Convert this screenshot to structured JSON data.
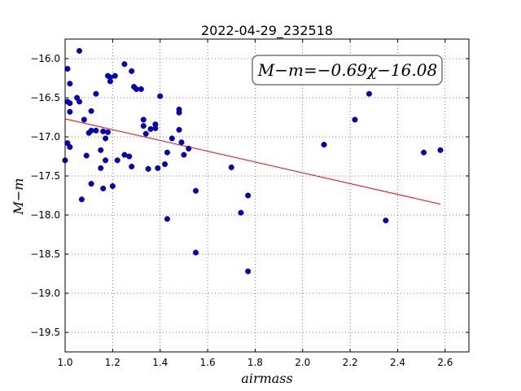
{
  "chart_data": {
    "type": "scatter",
    "title": "2022-04-29_232518",
    "xlabel": "airmass",
    "ylabel": "M−m",
    "xlim": [
      1.0,
      2.7
    ],
    "ylim": [
      -19.75,
      -15.75
    ],
    "ylim_direction": "inverted",
    "grid": true,
    "xticks": [
      "1.0",
      "1.2",
      "1.4",
      "1.6",
      "1.8",
      "2.0",
      "2.2",
      "2.4",
      "2.6"
    ],
    "yticks": [
      "−16.0",
      "−16.5",
      "−17.0",
      "−17.5",
      "−18.0",
      "−18.5",
      "−19.0",
      "−19.5"
    ],
    "annotation": "M−m=−0.69χ−16.08",
    "fit": {
      "slope": -0.69,
      "intercept": -16.08,
      "x_range": [
        1.0,
        2.58
      ],
      "color": "#ff0000"
    },
    "marker_color": "#0000cc",
    "points": [
      {
        "x": 1.0,
        "y": -17.3
      },
      {
        "x": 1.01,
        "y": -16.13
      },
      {
        "x": 1.01,
        "y": -16.55
      },
      {
        "x": 1.01,
        "y": -17.08
      },
      {
        "x": 1.02,
        "y": -17.13
      },
      {
        "x": 1.02,
        "y": -16.57
      },
      {
        "x": 1.02,
        "y": -16.32
      },
      {
        "x": 1.02,
        "y": -16.68
      },
      {
        "x": 1.05,
        "y": -16.5
      },
      {
        "x": 1.06,
        "y": -16.55
      },
      {
        "x": 1.06,
        "y": -15.9
      },
      {
        "x": 1.07,
        "y": -17.8
      },
      {
        "x": 1.08,
        "y": -16.78
      },
      {
        "x": 1.09,
        "y": -17.24
      },
      {
        "x": 1.1,
        "y": -16.95
      },
      {
        "x": 1.11,
        "y": -16.67
      },
      {
        "x": 1.11,
        "y": -16.92
      },
      {
        "x": 1.11,
        "y": -17.6
      },
      {
        "x": 1.13,
        "y": -16.92
      },
      {
        "x": 1.13,
        "y": -16.45
      },
      {
        "x": 1.15,
        "y": -17.4
      },
      {
        "x": 1.15,
        "y": -17.17
      },
      {
        "x": 1.16,
        "y": -17.66
      },
      {
        "x": 1.16,
        "y": -16.93
      },
      {
        "x": 1.17,
        "y": -17.3
      },
      {
        "x": 1.17,
        "y": -17.02
      },
      {
        "x": 1.18,
        "y": -16.94
      },
      {
        "x": 1.18,
        "y": -16.22
      },
      {
        "x": 1.19,
        "y": -16.29
      },
      {
        "x": 1.19,
        "y": -16.24
      },
      {
        "x": 1.2,
        "y": -17.63
      },
      {
        "x": 1.21,
        "y": -16.22
      },
      {
        "x": 1.22,
        "y": -17.3
      },
      {
        "x": 1.25,
        "y": -17.23
      },
      {
        "x": 1.25,
        "y": -16.07
      },
      {
        "x": 1.27,
        "y": -17.25
      },
      {
        "x": 1.28,
        "y": -17.38
      },
      {
        "x": 1.28,
        "y": -16.16
      },
      {
        "x": 1.29,
        "y": -16.36
      },
      {
        "x": 1.3,
        "y": -16.39
      },
      {
        "x": 1.32,
        "y": -16.39
      },
      {
        "x": 1.33,
        "y": -16.78
      },
      {
        "x": 1.33,
        "y": -16.86
      },
      {
        "x": 1.34,
        "y": -16.96
      },
      {
        "x": 1.35,
        "y": -17.41
      },
      {
        "x": 1.36,
        "y": -16.9
      },
      {
        "x": 1.38,
        "y": -16.89
      },
      {
        "x": 1.38,
        "y": -16.84
      },
      {
        "x": 1.39,
        "y": -17.4
      },
      {
        "x": 1.4,
        "y": -16.48
      },
      {
        "x": 1.42,
        "y": -17.35
      },
      {
        "x": 1.43,
        "y": -17.2
      },
      {
        "x": 1.43,
        "y": -18.05
      },
      {
        "x": 1.45,
        "y": -17.02
      },
      {
        "x": 1.48,
        "y": -16.65
      },
      {
        "x": 1.48,
        "y": -16.69
      },
      {
        "x": 1.48,
        "y": -16.91
      },
      {
        "x": 1.49,
        "y": -17.07
      },
      {
        "x": 1.5,
        "y": -17.23
      },
      {
        "x": 1.52,
        "y": -17.15
      },
      {
        "x": 1.55,
        "y": -18.48
      },
      {
        "x": 1.55,
        "y": -17.69
      },
      {
        "x": 1.7,
        "y": -17.39
      },
      {
        "x": 1.74,
        "y": -17.97
      },
      {
        "x": 1.77,
        "y": -17.75
      },
      {
        "x": 1.77,
        "y": -18.72
      },
      {
        "x": 2.09,
        "y": -17.1
      },
      {
        "x": 2.22,
        "y": -16.78
      },
      {
        "x": 2.28,
        "y": -16.45
      },
      {
        "x": 2.35,
        "y": -18.07
      },
      {
        "x": 2.51,
        "y": -17.2
      },
      {
        "x": 2.58,
        "y": -17.17
      }
    ]
  }
}
